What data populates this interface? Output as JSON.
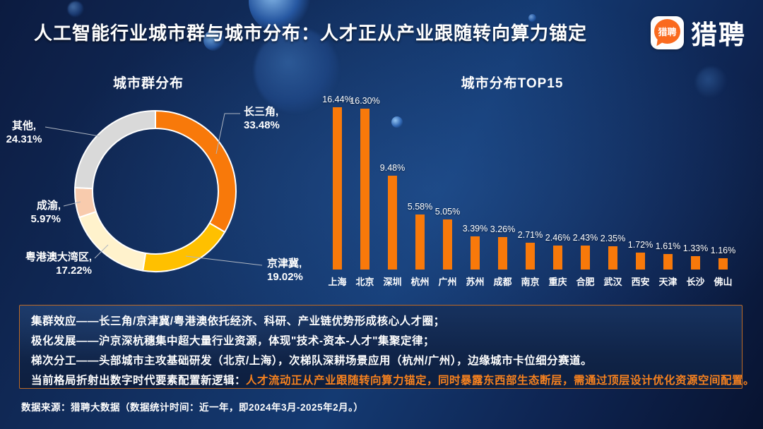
{
  "header": {
    "title": "人工智能行业城市群与城市分布：人才正从产业跟随转向算力锚定",
    "logo_text": "猎聘",
    "logo_icon_text": "猎聘"
  },
  "colors": {
    "accent_orange": "#f8790a",
    "highlight_text_orange": "#f8821e",
    "background_navy": "#102a5c",
    "box_border_orange": "#bd6a26"
  },
  "chart_data": [
    {
      "type": "pie",
      "donut": true,
      "title": "城市群分布",
      "labels": [
        "长三角",
        "京津冀",
        "粤港澳大湾区",
        "成渝",
        "其他"
      ],
      "values": [
        33.48,
        19.02,
        17.22,
        5.97,
        24.31
      ],
      "colors": [
        "#f8790a",
        "#ffc000",
        "#fff2cc",
        "#f8cbad",
        "#d9d9d9"
      ],
      "value_suffix": "%",
      "legend_position": "callout-labels",
      "start_angle_deg": 0,
      "direction": "clockwise"
    },
    {
      "type": "bar",
      "title": "城市分布TOP15",
      "categories": [
        "上海",
        "北京",
        "深圳",
        "杭州",
        "广州",
        "苏州",
        "成都",
        "南京",
        "重庆",
        "合肥",
        "武汉",
        "西安",
        "天津",
        "长沙",
        "佛山"
      ],
      "values": [
        16.44,
        16.3,
        9.48,
        5.58,
        5.05,
        3.39,
        3.26,
        2.71,
        2.46,
        2.43,
        2.35,
        1.72,
        1.61,
        1.33,
        1.16
      ],
      "bar_color": "#f8790a",
      "value_suffix": "%",
      "ylim": [
        0,
        18
      ],
      "grid": false,
      "data_labels": true
    }
  ],
  "insights": {
    "lines": [
      "集群效应——长三角/京津冀/粤港澳依托经济、科研、产业链优势形成核心人才圈；",
      "极化发展——沪京深杭穗集中超大量行业资源，体现\"技术-资本-人才\"集聚定律；",
      "梯次分工——头部城市主攻基础研发（北京/上海），次梯队深耕场景应用（杭州/广州），边缘城市卡位细分赛道。"
    ],
    "conclusion_prefix": "当前格局折射出数字时代要素配置新逻辑：",
    "conclusion_highlight": "人才流动正从产业跟随转向算力锚定，同时暴露东西部生态断层，需通过顶层设计优化资源空间配置。",
    "highlight_color": "#f8821e"
  },
  "footer": {
    "source": "数据来源：猎聘大数据（数据统计时间：近一年，即2024年3月-2025年2月。）"
  }
}
